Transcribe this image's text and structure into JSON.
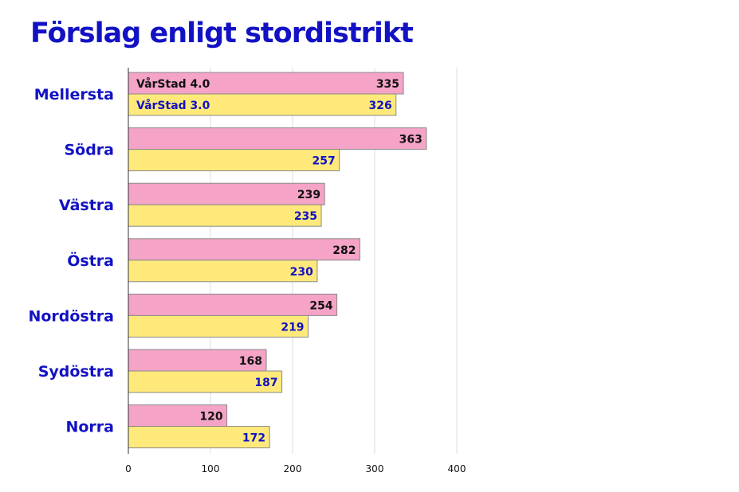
{
  "chart_data": {
    "type": "bar",
    "orientation": "horizontal",
    "title": "Förslag enligt stordistrikt",
    "categories": [
      "Mellersta",
      "Södra",
      "Västra",
      "Östra",
      "Nordöstra",
      "Sydöstra",
      "Norra"
    ],
    "series": [
      {
        "name": "VårStad 4.0",
        "values": [
          335,
          363,
          239,
          282,
          254,
          168,
          120
        ],
        "color": "#f5a3c7",
        "label_color": "#111111"
      },
      {
        "name": "VårStad 3.0",
        "values": [
          326,
          257,
          235,
          230,
          219,
          187,
          172
        ],
        "color": "#ffe97a",
        "label_color": "#1212c4"
      }
    ],
    "xlim": [
      0,
      400
    ],
    "xticks": [
      0,
      100,
      200,
      300,
      400
    ],
    "grid": true,
    "legend": "inside first bars",
    "category_color": "#1212c4"
  }
}
